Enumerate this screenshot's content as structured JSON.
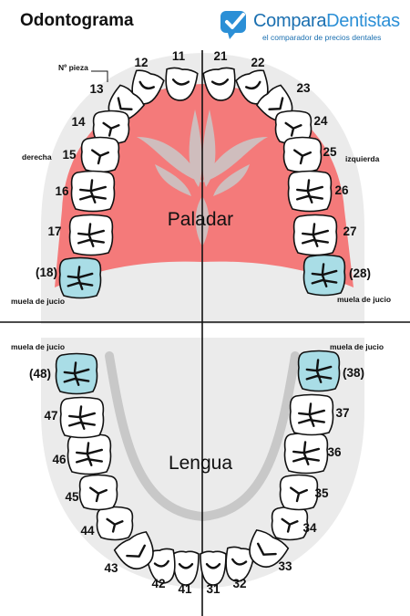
{
  "title": "Odontograma",
  "brand": {
    "name_part1": "Compara",
    "name_part2": "Dentistas",
    "tagline": "el comparador de precios dentales",
    "logo_icon": "check-bubble-icon",
    "color": "#1a6fb0"
  },
  "labels": {
    "n_pieza": "Nº pieza",
    "derecha": "derecha",
    "izquierda": "izquierda",
    "paladar": "Paladar",
    "lengua": "Lengua",
    "muela_juicio_upper_left": "muela de jucio",
    "muela_juicio_upper_right": "muela de jucio",
    "muela_juicio_lower_left": "muela de jucio",
    "muela_juicio_lower_right": "muela de jucio"
  },
  "colors": {
    "palate": "#f47a7a",
    "gum_area": "#e8e8e8",
    "wisdom_tooth": "#a9dde6",
    "tooth": "#ffffff"
  },
  "upper_teeth": [
    {
      "id": "11",
      "label": "11",
      "kind": "incisor"
    },
    {
      "id": "12",
      "label": "12",
      "kind": "incisor"
    },
    {
      "id": "13",
      "label": "13",
      "kind": "canine"
    },
    {
      "id": "14",
      "label": "14",
      "kind": "premolar"
    },
    {
      "id": "15",
      "label": "15",
      "kind": "premolar"
    },
    {
      "id": "16",
      "label": "16",
      "kind": "molar"
    },
    {
      "id": "17",
      "label": "17",
      "kind": "molar"
    },
    {
      "id": "18",
      "label": "(18)",
      "kind": "wisdom"
    },
    {
      "id": "21",
      "label": "21",
      "kind": "incisor"
    },
    {
      "id": "22",
      "label": "22",
      "kind": "incisor"
    },
    {
      "id": "23",
      "label": "23",
      "kind": "canine"
    },
    {
      "id": "24",
      "label": "24",
      "kind": "premolar"
    },
    {
      "id": "25",
      "label": "25",
      "kind": "premolar"
    },
    {
      "id": "26",
      "label": "26",
      "kind": "molar"
    },
    {
      "id": "27",
      "label": "27",
      "kind": "molar"
    },
    {
      "id": "28",
      "label": "(28)",
      "kind": "wisdom"
    }
  ],
  "lower_teeth": [
    {
      "id": "31",
      "label": "31",
      "kind": "incisor"
    },
    {
      "id": "32",
      "label": "32",
      "kind": "incisor"
    },
    {
      "id": "33",
      "label": "33",
      "kind": "canine"
    },
    {
      "id": "34",
      "label": "34",
      "kind": "premolar"
    },
    {
      "id": "35",
      "label": "35",
      "kind": "premolar"
    },
    {
      "id": "36",
      "label": "36",
      "kind": "molar"
    },
    {
      "id": "37",
      "label": "37",
      "kind": "molar"
    },
    {
      "id": "38",
      "label": "(38)",
      "kind": "wisdom"
    },
    {
      "id": "41",
      "label": "41",
      "kind": "incisor"
    },
    {
      "id": "42",
      "label": "42",
      "kind": "incisor"
    },
    {
      "id": "43",
      "label": "43",
      "kind": "canine"
    },
    {
      "id": "44",
      "label": "44",
      "kind": "premolar"
    },
    {
      "id": "45",
      "label": "45",
      "kind": "premolar"
    },
    {
      "id": "46",
      "label": "46",
      "kind": "molar"
    },
    {
      "id": "47",
      "label": "47",
      "kind": "molar"
    },
    {
      "id": "48",
      "label": "(48)",
      "kind": "wisdom"
    }
  ]
}
